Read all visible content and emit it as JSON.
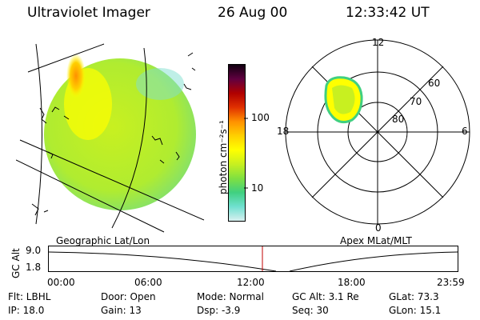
{
  "header": {
    "instrument": "Ultraviolet Imager",
    "date": "26 Aug 00",
    "time": "12:33:42 UT"
  },
  "colorbar": {
    "unit_label": "photon cm⁻²s⁻¹",
    "tick_100": "100",
    "tick_10": "10",
    "colors": [
      "#d8f0f0",
      "#70e0d0",
      "#40d080",
      "#80e040",
      "#c8f020",
      "#ffff00",
      "#ffd000",
      "#ff9000",
      "#e03000",
      "#b00000",
      "#600040",
      "#100010"
    ]
  },
  "geo_panel": {
    "label": "Geographic Lat/Lon"
  },
  "polar_panel": {
    "label": "Apex MLat/MLT",
    "mlt_labels": {
      "top": "12",
      "right": "6",
      "bottom": "0",
      "left": "18"
    },
    "lat_labels": [
      "60",
      "70",
      "80"
    ]
  },
  "timeline": {
    "axis_label": "GC Alt",
    "y_top": "9.0",
    "y_bottom": "1.8",
    "ticks": [
      "00:00",
      "06:00",
      "12:00",
      "18:00",
      "23:59"
    ],
    "marker_color": "#c00000"
  },
  "status": {
    "flt": "Flt: LBHL",
    "ip": "IP: 18.0",
    "door": "Door: Open",
    "gain": "Gain: 13",
    "mode": "Mode: Normal",
    "dsp": "Dsp:    -3.9",
    "gcalt": "GC Alt: 3.1 Re",
    "seq": "Seq: 30",
    "glat": "GLat:   73.3",
    "glon": "GLon:   15.1"
  }
}
